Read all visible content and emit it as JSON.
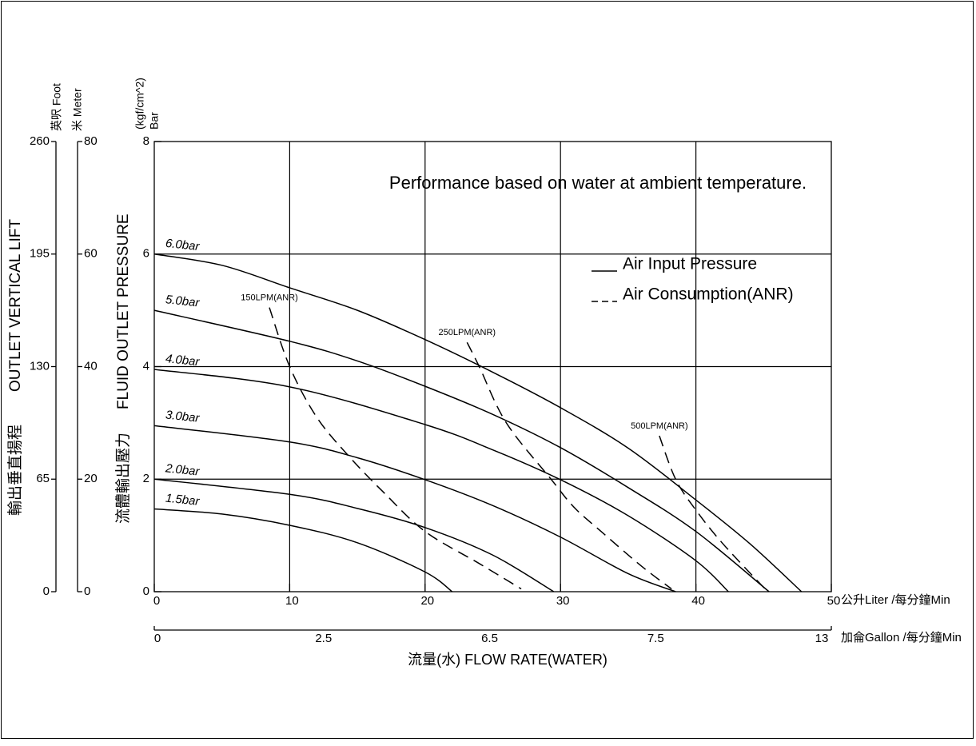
{
  "chart_data": {
    "type": "line",
    "annotation": "Performance based on water at ambient temperature.",
    "xlabel": "流量(水) FLOW RATE(WATER)",
    "x_unit": "公升Liter /每分鐘Min",
    "xlim": [
      0,
      50
    ],
    "xticks": [
      0,
      10,
      20,
      30,
      40,
      50
    ],
    "gallon_axis": {
      "unit": "加侖Gallon /每分鐘Min",
      "categories": [
        "0",
        "2.5",
        "6.5",
        "7.5",
        "13"
      ]
    },
    "ylabel": "FLUID OUTLET PRESSURE",
    "ylabel_zh": "流體輸出壓力",
    "y_unit": "Bar",
    "y_unit_alt": "(kgf/cm^2)",
    "ylim": [
      0,
      8
    ],
    "yticks": [
      0,
      2,
      4,
      6,
      8
    ],
    "lift_label": "OUTLET VERTICAL LIFT",
    "lift_label_zh": "輸出垂直揚程",
    "meter_axis": {
      "unit": "米 Meter",
      "lim": [
        0,
        80
      ],
      "ticks": [
        0,
        20,
        40,
        60,
        80
      ]
    },
    "foot_axis": {
      "unit": "英呎 Foot",
      "lim": [
        0,
        260
      ],
      "ticks": [
        0,
        65,
        130,
        195,
        260
      ]
    },
    "grid": true,
    "legend": [
      {
        "label": "Air Input Pressure",
        "style": "solid"
      },
      {
        "label": "Air Consumption(ANR)",
        "style": "dashed"
      }
    ],
    "series": [
      {
        "name": "6.0bar",
        "style": "solid",
        "color": "#000000",
        "x": [
          0,
          5,
          10,
          15,
          20,
          25,
          30,
          35,
          40,
          44,
          47.8
        ],
        "values": [
          6,
          5.8,
          5.4,
          5.0,
          4.48,
          3.9,
          3.27,
          2.55,
          1.63,
          0.85,
          0
        ]
      },
      {
        "name": "5.0bar",
        "style": "solid",
        "color": "#000000",
        "x": [
          0,
          10,
          15,
          20,
          25,
          30,
          35,
          40,
          45.4
        ],
        "values": [
          5,
          4.45,
          4.1,
          3.65,
          3.15,
          2.56,
          1.85,
          1.07,
          0
        ]
      },
      {
        "name": "4.0bar",
        "style": "solid",
        "color": "#000000",
        "x": [
          0,
          10,
          20,
          25,
          30,
          35,
          40,
          42.4
        ],
        "values": [
          3.95,
          3.64,
          2.97,
          2.52,
          1.99,
          1.35,
          0.55,
          0
        ]
      },
      {
        "name": "3.0bar",
        "style": "solid",
        "color": "#000000",
        "x": [
          0,
          10,
          15,
          20,
          25,
          30,
          35,
          38.5
        ],
        "values": [
          2.95,
          2.66,
          2.38,
          1.99,
          1.53,
          0.97,
          0.32,
          0
        ]
      },
      {
        "name": "2.0bar",
        "style": "solid",
        "color": "#000000",
        "x": [
          0,
          10,
          15,
          20,
          25,
          29.5
        ],
        "values": [
          2,
          1.73,
          1.48,
          1.14,
          0.65,
          0
        ]
      },
      {
        "name": "1.5bar",
        "style": "solid",
        "color": "#000000",
        "x": [
          0,
          5,
          10,
          15,
          20,
          22
        ],
        "values": [
          1.47,
          1.38,
          1.18,
          0.87,
          0.35,
          0
        ]
      },
      {
        "name": "150LPM(ANR)",
        "style": "dashed",
        "color": "#000000",
        "x": [
          8.5,
          10,
          12,
          14.4,
          17,
          20,
          24,
          27.1
        ],
        "values": [
          5.05,
          4.0,
          3.1,
          2.4,
          1.75,
          1.07,
          0.5,
          0.05
        ]
      },
      {
        "name": "250LPM(ANR)",
        "style": "dashed",
        "color": "#000000",
        "x": [
          23.1,
          24,
          26,
          29.3,
          31,
          33,
          36,
          38.2
        ],
        "values": [
          4.43,
          4.0,
          3.0,
          2.0,
          1.5,
          1.07,
          0.45,
          0.05
        ]
      },
      {
        "name": "500LPM(ANR)",
        "style": "dashed",
        "color": "#000000",
        "x": [
          37.3,
          38.5,
          40,
          42,
          45.3
        ],
        "values": [
          2.77,
          2.0,
          1.45,
          0.85,
          0
        ]
      }
    ]
  }
}
